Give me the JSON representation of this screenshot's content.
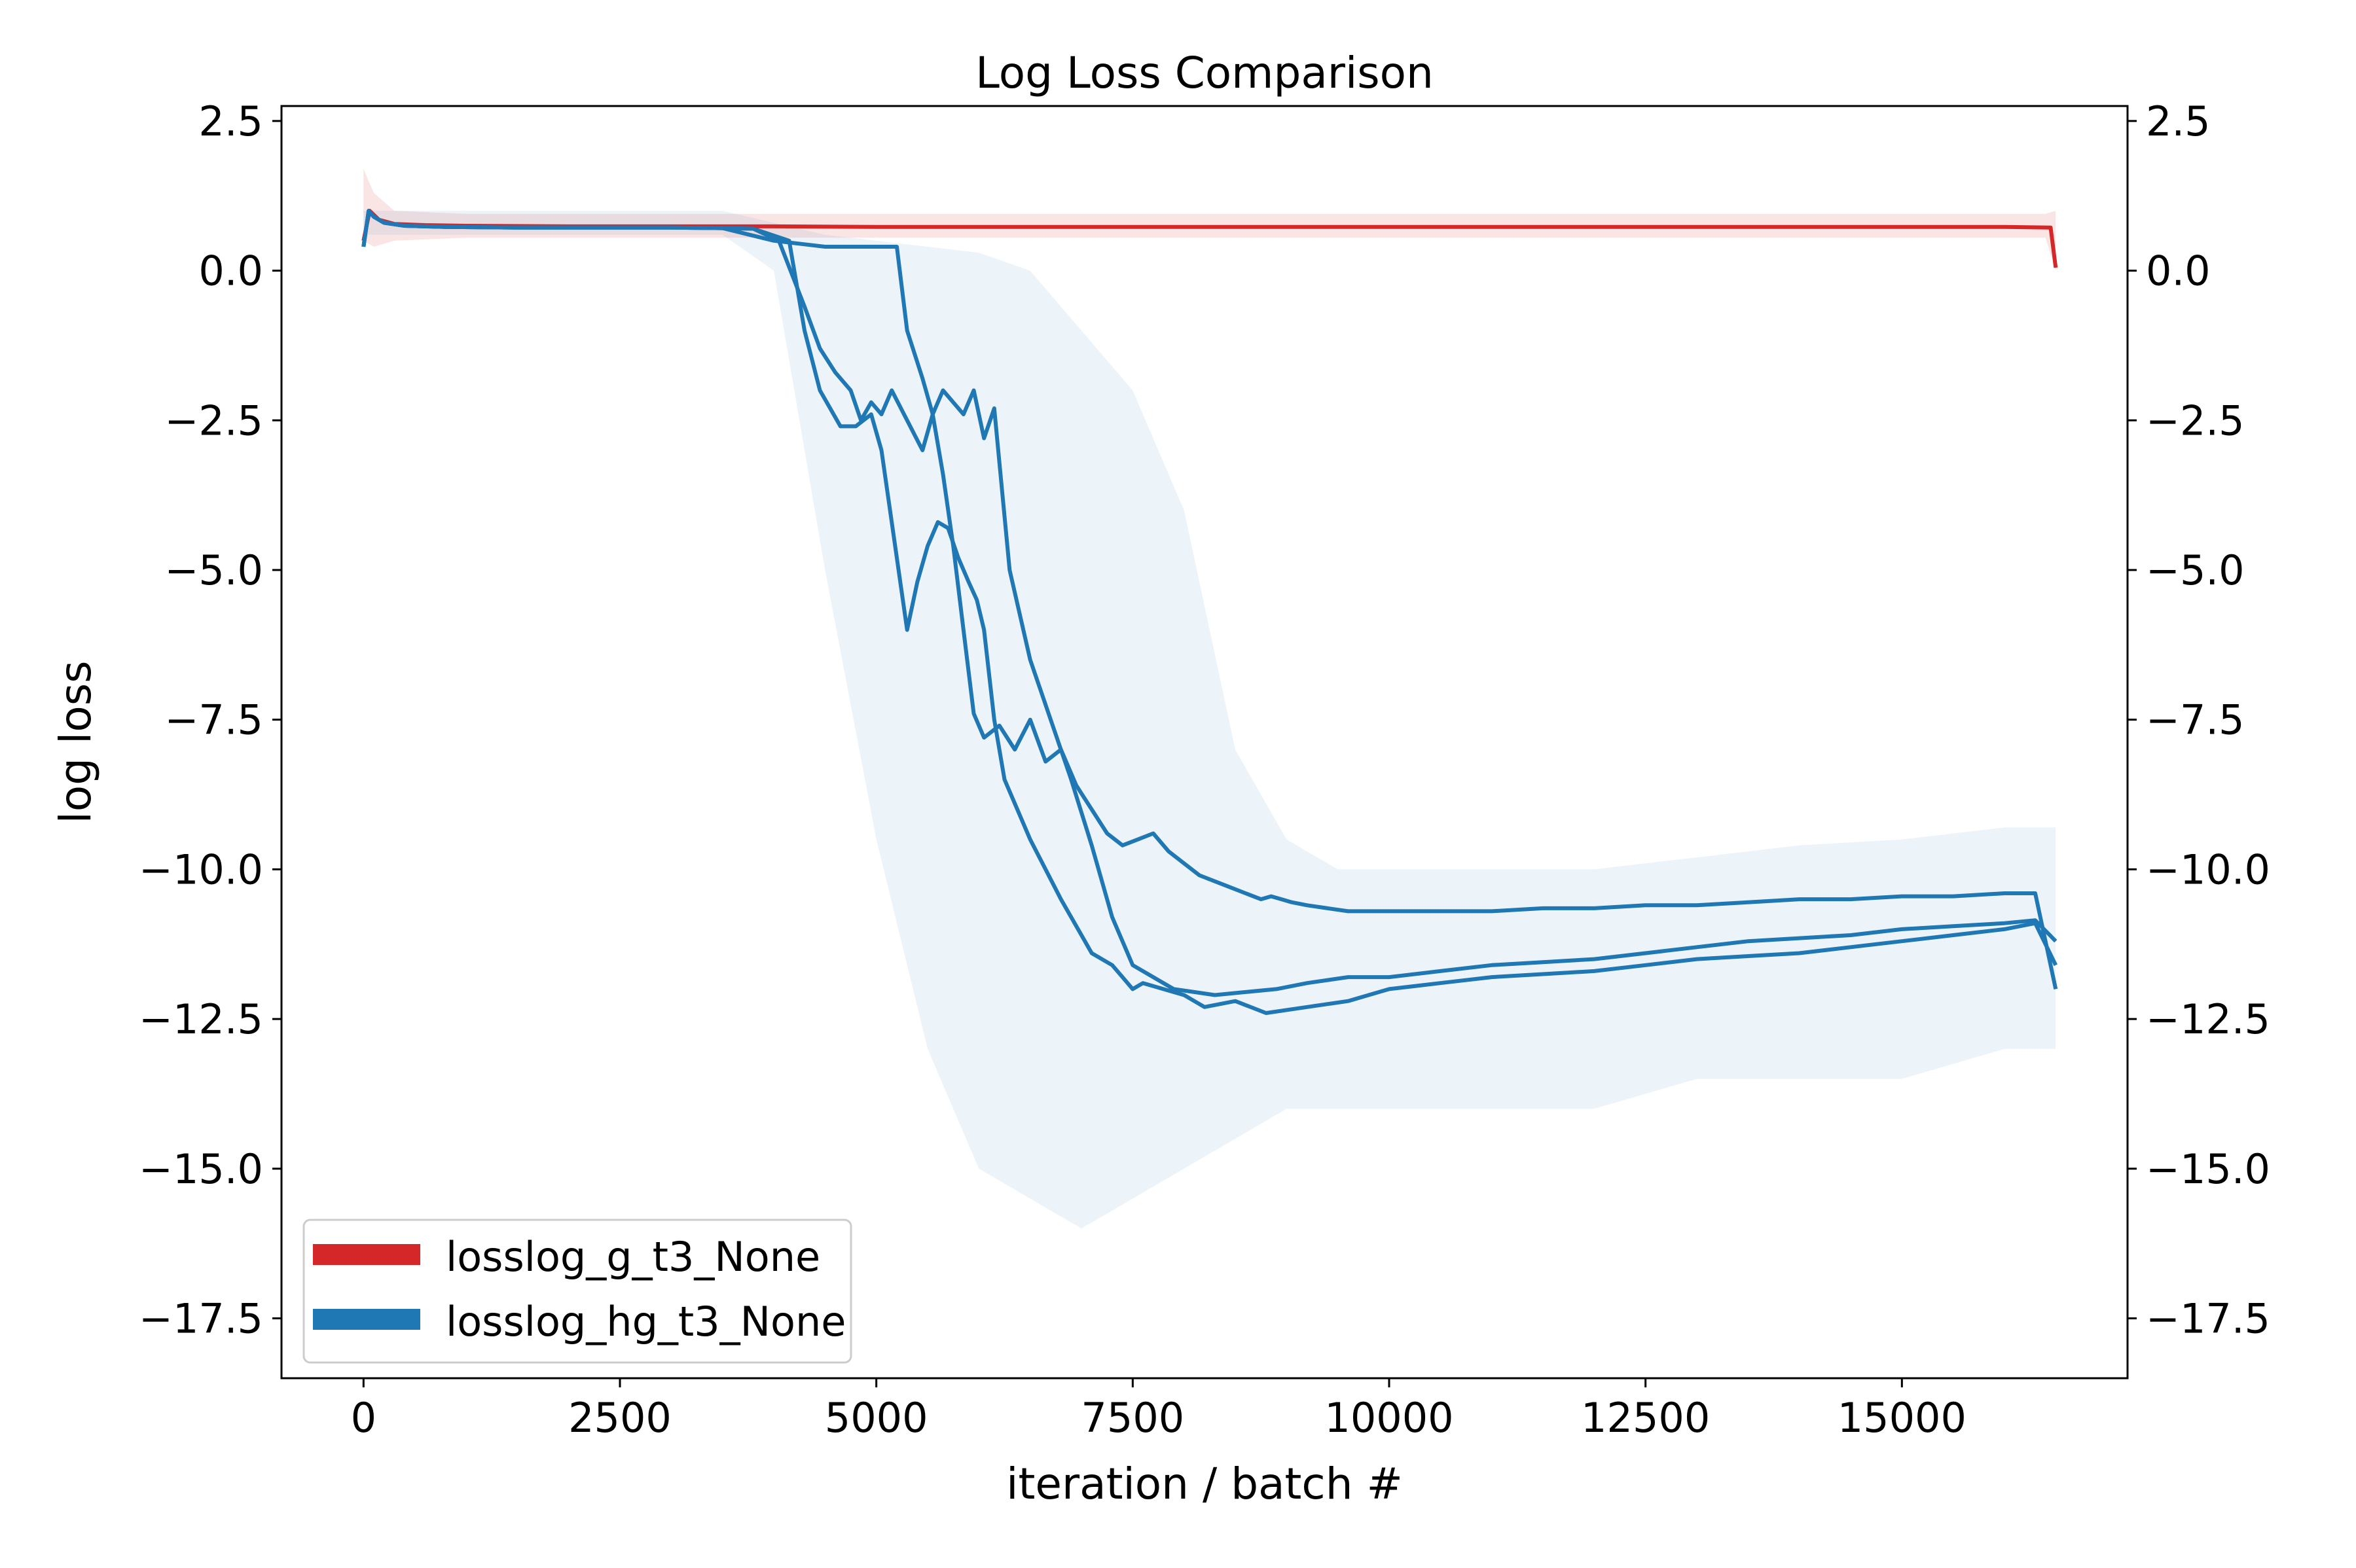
{
  "chart_data": {
    "type": "line",
    "title": "Log Loss Comparison",
    "xlabel": "iteration / batch #",
    "ylabel": "log loss",
    "xlim": [
      -800,
      17200
    ],
    "ylim": [
      -18.5,
      2.75
    ],
    "x_ticks": [
      0,
      2500,
      5000,
      7500,
      10000,
      12500,
      15000
    ],
    "x_tick_labels": [
      "0",
      "2500",
      "5000",
      "7500",
      "10000",
      "12500",
      "15000"
    ],
    "y_ticks": [
      2.5,
      0.0,
      -2.5,
      -5.0,
      -7.5,
      -10.0,
      -12.5,
      -15.0,
      -17.5
    ],
    "y_tick_labels": [
      "2.5",
      "0.0",
      "−2.5",
      "−5.0",
      "−7.5",
      "−10.0",
      "−12.5",
      "−15.0",
      "−17.5"
    ],
    "right_axis_mirrors_left": true,
    "grid": false,
    "legend_position": "lower-left",
    "legend": [
      {
        "label": "losslog_g_t3_None",
        "color": "#d62728"
      },
      {
        "label": "losslog_hg_t3_None",
        "color": "#1f77b4"
      }
    ],
    "series": [
      {
        "name": "losslog_g_t3_None",
        "color": "#d62728",
        "band": {
          "x": [
            0,
            100,
            300,
            1000,
            16400,
            16500
          ],
          "lower": [
            0.5,
            0.4,
            0.5,
            0.55,
            0.55,
            0.0
          ],
          "upper": [
            1.7,
            1.3,
            1.0,
            0.95,
            0.95,
            1.0
          ]
        },
        "runs": [
          {
            "x": [
              0,
              60,
              150,
              300,
              600,
              1000,
              2000,
              3000,
              4000,
              5000,
              8000,
              12000,
              16000,
              16450,
              16500
            ],
            "y": [
              0.5,
              1.0,
              0.85,
              0.78,
              0.76,
              0.75,
              0.74,
              0.74,
              0.74,
              0.73,
              0.73,
              0.73,
              0.73,
              0.72,
              0.05
            ]
          }
        ]
      },
      {
        "name": "losslog_hg_t3_None",
        "color": "#1f77b4",
        "band": {
          "x": [
            0,
            3500,
            4000,
            4500,
            5000,
            5500,
            6000,
            6500,
            7000,
            7500,
            8000,
            8500,
            9000,
            9500,
            10000,
            11000,
            12000,
            13000,
            14000,
            15000,
            16000,
            16500
          ],
          "lower": [
            0.6,
            0.6,
            0.0,
            -5.0,
            -9.5,
            -13.0,
            -15.0,
            -15.5,
            -16.0,
            -15.5,
            -15.0,
            -14.5,
            -14.0,
            -14.0,
            -14.0,
            -14.0,
            -14.0,
            -13.5,
            -13.5,
            -13.5,
            -13.0,
            -13.0
          ],
          "upper": [
            1.0,
            1.0,
            0.8,
            0.6,
            0.5,
            0.4,
            0.3,
            0.0,
            -1.0,
            -2.0,
            -4.0,
            -8.0,
            -9.5,
            -10.0,
            -10.0,
            -10.0,
            -10.0,
            -9.8,
            -9.6,
            -9.5,
            -9.3,
            -9.3
          ]
        },
        "runs": [
          {
            "x": [
              0,
              50,
              100,
              200,
              400,
              800,
              1500,
              2500,
              3000,
              3500,
              3800,
              4050,
              4300,
              4450,
              4600,
              4750,
              4850,
              4950,
              5050,
              5150,
              5300,
              5450,
              5550,
              5650,
              5750,
              5850,
              5950,
              6050,
              6150,
              6300,
              6500,
              6700,
              6900,
              7100,
              7300,
              7500,
              7700,
              7900,
              8100,
              8300,
              8600,
              8900,
              9200,
              9600,
              10000,
              10500,
              11000,
              11500,
              12000,
              12500,
              13000,
              13500,
              14000,
              14500,
              15000,
              15500,
              16000,
              16300,
              16500
            ],
            "y": [
              0.4,
              1.0,
              0.9,
              0.8,
              0.75,
              0.73,
              0.72,
              0.72,
              0.72,
              0.71,
              0.7,
              0.5,
              -0.6,
              -1.3,
              -1.7,
              -2.0,
              -2.5,
              -2.2,
              -2.4,
              -2.0,
              -2.5,
              -3.0,
              -2.4,
              -2.0,
              -2.2,
              -2.4,
              -2.0,
              -2.8,
              -2.3,
              -5.0,
              -6.5,
              -7.5,
              -8.5,
              -9.6,
              -10.8,
              -11.6,
              -11.8,
              -12.0,
              -12.05,
              -12.1,
              -12.05,
              -12.0,
              -11.9,
              -11.8,
              -11.8,
              -11.7,
              -11.6,
              -11.55,
              -11.5,
              -11.4,
              -11.3,
              -11.2,
              -11.15,
              -11.1,
              -11.0,
              -10.95,
              -10.9,
              -10.85,
              -11.2
            ]
          },
          {
            "x": [
              0,
              50,
              100,
              200,
              400,
              800,
              1500,
              2500,
              3000,
              3500,
              3800,
              4150,
              4300,
              4450,
              4650,
              4800,
              4950,
              5050,
              5150,
              5300,
              5400,
              5500,
              5600,
              5700,
              5800,
              5900,
              5980,
              6050,
              6150,
              6250,
              6500,
              6800,
              7100,
              7300,
              7400,
              7500,
              7600,
              7800,
              8000,
              8200,
              8500,
              8800,
              9200,
              9600,
              10000,
              10500,
              11000,
              11500,
              12000,
              12500,
              13000,
              13500,
              14000,
              14500,
              15000,
              15500,
              16000,
              16300,
              16500
            ],
            "y": [
              0.4,
              1.0,
              0.9,
              0.8,
              0.75,
              0.73,
              0.72,
              0.72,
              0.72,
              0.71,
              0.7,
              0.5,
              -1.0,
              -2.0,
              -2.6,
              -2.6,
              -2.4,
              -3.0,
              -4.2,
              -6.0,
              -5.2,
              -4.6,
              -4.2,
              -4.3,
              -4.8,
              -5.2,
              -5.5,
              -6.0,
              -7.5,
              -8.5,
              -9.5,
              -10.5,
              -11.4,
              -11.6,
              -11.8,
              -12.0,
              -11.9,
              -12.0,
              -12.1,
              -12.3,
              -12.2,
              -12.4,
              -12.3,
              -12.2,
              -12.0,
              -11.9,
              -11.8,
              -11.75,
              -11.7,
              -11.6,
              -11.5,
              -11.45,
              -11.4,
              -11.3,
              -11.2,
              -11.1,
              -11.0,
              -10.9,
              -11.6
            ]
          },
          {
            "x": [
              0,
              50,
              100,
              200,
              400,
              800,
              1500,
              2500,
              3000,
              3500,
              4000,
              4500,
              5000,
              5200,
              5300,
              5450,
              5550,
              5650,
              5750,
              5850,
              5950,
              6050,
              6200,
              6350,
              6500,
              6650,
              6800,
              6950,
              7100,
              7250,
              7400,
              7550,
              7700,
              7850,
              8000,
              8150,
              8300,
              8450,
              8600,
              8750,
              8850,
              8950,
              9050,
              9200,
              9400,
              9600,
              10000,
              10500,
              11000,
              11500,
              12000,
              12500,
              13000,
              13500,
              14000,
              14500,
              15000,
              15500,
              16000,
              16300,
              16500
            ],
            "y": [
              0.4,
              1.0,
              0.9,
              0.8,
              0.75,
              0.73,
              0.72,
              0.72,
              0.72,
              0.71,
              0.5,
              0.4,
              0.4,
              0.4,
              -1.0,
              -1.8,
              -2.4,
              -3.4,
              -4.6,
              -6.0,
              -7.4,
              -7.8,
              -7.6,
              -8.0,
              -7.5,
              -8.2,
              -8.0,
              -8.6,
              -9.0,
              -9.4,
              -9.6,
              -9.5,
              -9.4,
              -9.7,
              -9.9,
              -10.1,
              -10.2,
              -10.3,
              -10.4,
              -10.5,
              -10.45,
              -10.5,
              -10.55,
              -10.6,
              -10.65,
              -10.7,
              -10.7,
              -10.7,
              -10.7,
              -10.65,
              -10.65,
              -10.6,
              -10.6,
              -10.55,
              -10.5,
              -10.5,
              -10.45,
              -10.45,
              -10.4,
              -10.4,
              -12.0
            ]
          }
        ]
      }
    ]
  }
}
